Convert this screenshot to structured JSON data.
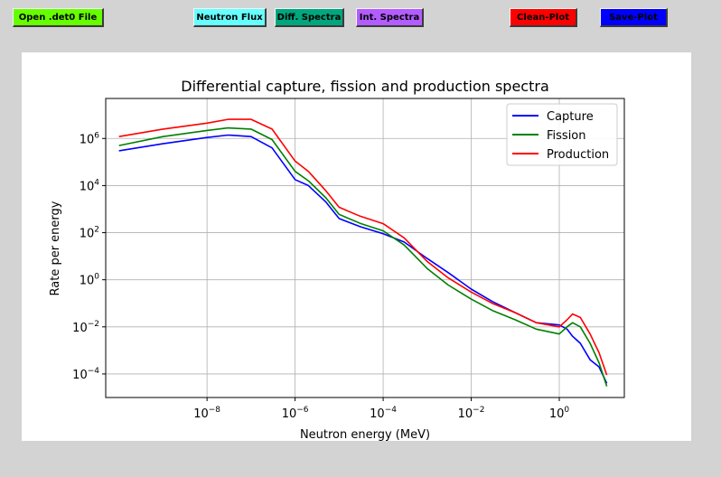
{
  "toolbar": {
    "open_label": "Open .det0 File",
    "flux_label": "Neutron Flux",
    "diff_label": "Diff. Spectra",
    "int_label": "Int. Spectra",
    "clean_label": "Clean-Plot",
    "save_label": "Save-Plot",
    "colors": {
      "open": "#66ff00",
      "flux": "#66ffff",
      "diff": "#00a67e",
      "int": "#b35cff",
      "clean": "#ff0000",
      "save": "#0000ff"
    }
  },
  "chart_data": {
    "type": "line",
    "title": "Differential capture, fission and production spectra",
    "xlabel": "Neutron energy (MeV)",
    "ylabel": "Rate per energy",
    "xscale": "log",
    "yscale": "log",
    "xlim": [
      5e-11,
      30
    ],
    "ylim": [
      1e-05,
      50000000.0
    ],
    "grid": true,
    "legend_position": "top-right",
    "x_ticks": [
      {
        "base": "10",
        "exp": "−8",
        "value": 1e-08
      },
      {
        "base": "10",
        "exp": "−6",
        "value": 1e-06
      },
      {
        "base": "10",
        "exp": "−4",
        "value": 0.0001
      },
      {
        "base": "10",
        "exp": "−2",
        "value": 0.01
      },
      {
        "base": "10",
        "exp": "0",
        "value": 1
      }
    ],
    "y_ticks": [
      {
        "base": "10",
        "exp": "6",
        "value": 1000000.0
      },
      {
        "base": "10",
        "exp": "4",
        "value": 10000.0
      },
      {
        "base": "10",
        "exp": "2",
        "value": 100.0
      },
      {
        "base": "10",
        "exp": "0",
        "value": 1
      },
      {
        "base": "10",
        "exp": "−2",
        "value": 0.01
      },
      {
        "base": "10",
        "exp": "−4",
        "value": 0.0001
      }
    ],
    "x": [
      1e-10,
      1e-09,
      1e-08,
      3e-08,
      1e-07,
      3e-07,
      1e-06,
      2e-06,
      5e-06,
      1e-05,
      3e-05,
      0.0001,
      0.0003,
      0.001,
      0.003,
      0.01,
      0.03,
      0.1,
      0.3,
      1,
      1.5,
      2,
      3,
      5,
      8,
      12
    ],
    "series": [
      {
        "name": "Capture",
        "color": "#0000ff",
        "values": [
          300000.0,
          600000.0,
          1100000.0,
          1400000.0,
          1200000.0,
          400000.0,
          18000.0,
          10000.0,
          2000,
          400,
          180,
          90,
          40,
          8,
          2,
          0.4,
          0.12,
          0.04,
          0.015,
          0.012,
          0.008,
          0.004,
          0.002,
          0.0004,
          0.0002,
          4e-05
        ]
      },
      {
        "name": "Fission",
        "color": "#008000",
        "values": [
          500000.0,
          1200000.0,
          2200000.0,
          2800000.0,
          2500000.0,
          900000.0,
          40000.0,
          16000.0,
          3000,
          600,
          250,
          120,
          30,
          3,
          0.6,
          0.15,
          0.05,
          0.02,
          0.008,
          0.005,
          0.01,
          0.015,
          0.01,
          0.002,
          0.0003,
          3e-05
        ]
      },
      {
        "name": "Production",
        "color": "#ff0000",
        "values": [
          1200000.0,
          2500000.0,
          4500000.0,
          6500000.0,
          6500000.0,
          2500000.0,
          110000.0,
          40000.0,
          6000,
          1200,
          500,
          240,
          60,
          6,
          1.2,
          0.3,
          0.1,
          0.04,
          0.015,
          0.01,
          0.02,
          0.035,
          0.025,
          0.005,
          0.0008,
          9e-05
        ]
      }
    ]
  }
}
